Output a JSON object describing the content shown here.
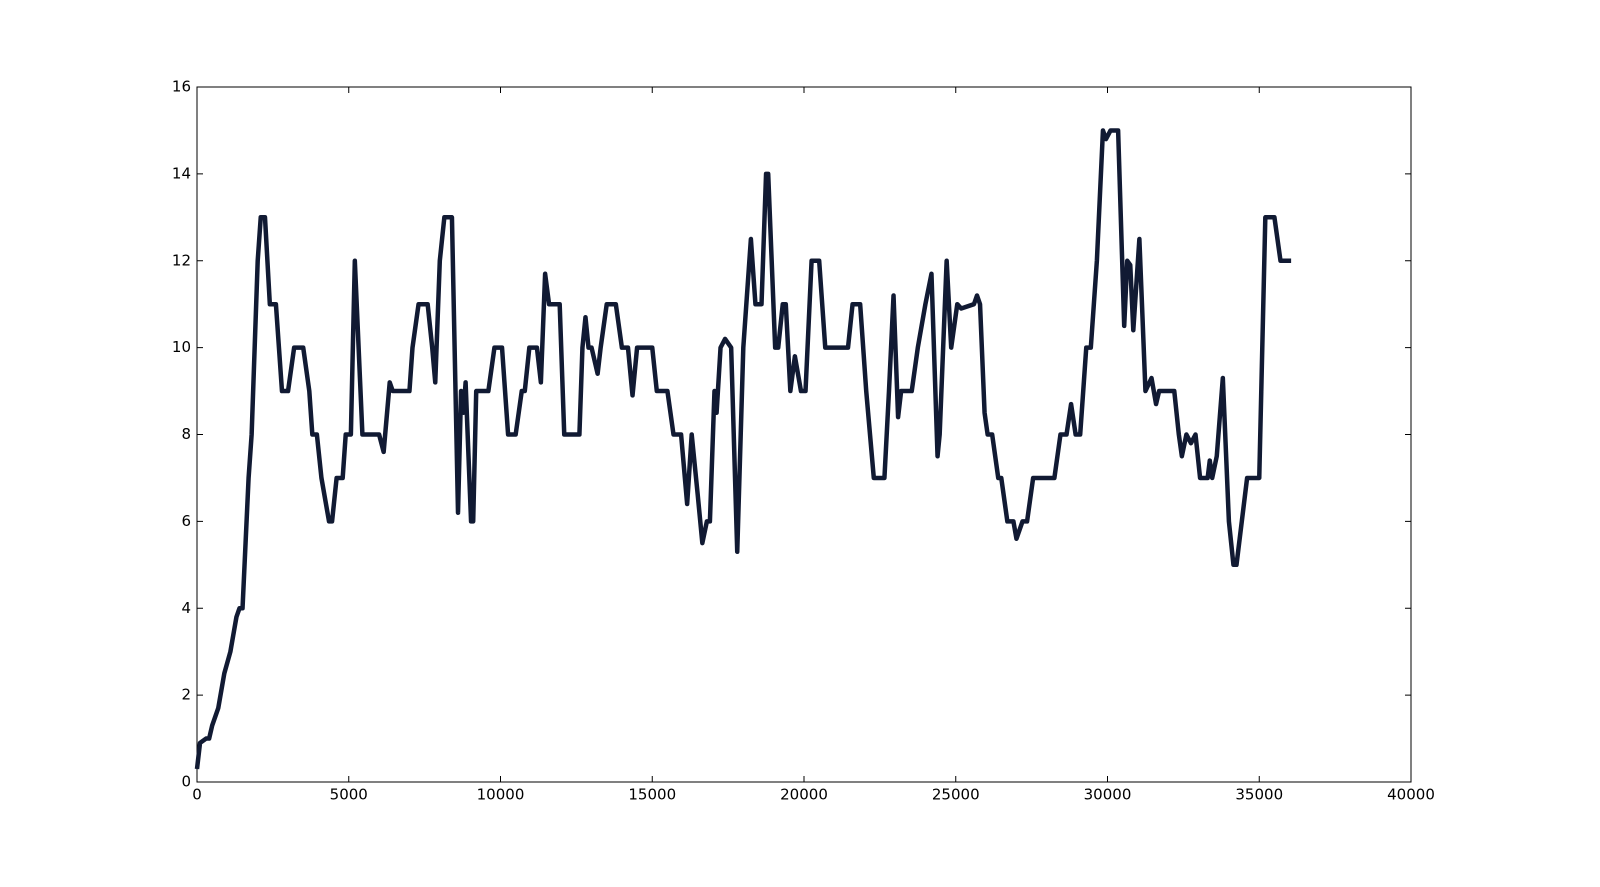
{
  "chart_data": {
    "type": "line",
    "color": "#111a33",
    "xlim": [
      0,
      40000
    ],
    "ylim": [
      0,
      16
    ],
    "xticks": [
      0,
      5000,
      10000,
      15000,
      20000,
      25000,
      30000,
      35000,
      40000
    ],
    "yticks": [
      0,
      2,
      4,
      6,
      8,
      10,
      12,
      14,
      16
    ],
    "x": [
      0,
      100,
      300,
      400,
      500,
      700,
      900,
      1100,
      1300,
      1400,
      1500,
      1600,
      1700,
      1800,
      1900,
      2000,
      2100,
      2240,
      2400,
      2600,
      2700,
      2800,
      3000,
      3200,
      3500,
      3700,
      3800,
      3950,
      4100,
      4350,
      4450,
      4600,
      4800,
      4900,
      5070,
      5200,
      5450,
      6000,
      6150,
      6350,
      6450,
      6550,
      7000,
      7100,
      7300,
      7600,
      7750,
      7850,
      8000,
      8150,
      8400,
      8600,
      8700,
      8780,
      8850,
      9030,
      9100,
      9200,
      9600,
      9800,
      10050,
      10250,
      10500,
      10700,
      10800,
      10950,
      11200,
      11330,
      11470,
      11600,
      11950,
      12100,
      12600,
      12700,
      12800,
      12900,
      13000,
      13200,
      13300,
      13500,
      13800,
      14000,
      14200,
      14350,
      14500,
      15000,
      15150,
      15500,
      15700,
      15950,
      16150,
      16300,
      16500,
      16650,
      16800,
      16900,
      17050,
      17120,
      17250,
      17400,
      17600,
      17800,
      18000,
      18250,
      18400,
      18600,
      18750,
      18820,
      19050,
      19150,
      19300,
      19400,
      19550,
      19700,
      19900,
      20050,
      20250,
      20500,
      20700,
      21450,
      21600,
      21850,
      22050,
      22300,
      22650,
      22800,
      22950,
      23100,
      23200,
      23550,
      23750,
      24000,
      24200,
      24400,
      24470,
      24700,
      24850,
      25050,
      25180,
      25600,
      25700,
      25800,
      25950,
      26050,
      26200,
      26400,
      26500,
      26700,
      26900,
      27000,
      27200,
      27350,
      27550,
      28250,
      28450,
      28650,
      28800,
      28950,
      29100,
      29300,
      29450,
      29650,
      29850,
      29950,
      30100,
      30350,
      30550,
      30650,
      30750,
      30850,
      31050,
      31250,
      31450,
      31600,
      31700,
      32200,
      32350,
      32450,
      32600,
      32750,
      32900,
      33050,
      33300,
      33370,
      33450,
      33600,
      33800,
      34000,
      34150,
      34250,
      34600,
      35000,
      35200,
      35500,
      35700,
      36050
    ],
    "values": [
      0.3,
      0.9,
      1.0,
      1.0,
      1.3,
      1.7,
      2.5,
      3.0,
      3.8,
      4.0,
      4.0,
      5.5,
      7,
      8,
      10,
      12,
      13,
      13,
      11,
      11,
      10,
      9,
      9,
      10,
      10,
      9,
      8,
      8,
      7,
      6,
      6,
      7,
      7,
      8,
      8,
      12,
      8,
      8,
      7.6,
      9.2,
      9,
      9,
      9,
      10,
      11,
      11,
      10,
      9.2,
      12,
      13,
      13,
      6.2,
      9,
      8.5,
      9.2,
      6,
      6,
      9,
      9,
      10,
      10,
      8,
      8,
      9,
      9,
      10,
      10,
      9.2,
      11.7,
      11,
      11,
      8,
      8,
      10,
      10.7,
      10,
      10,
      9.4,
      10,
      11,
      11,
      10,
      10,
      8.9,
      10,
      10,
      9,
      9,
      8,
      8,
      6.4,
      8,
      6.6,
      5.5,
      6,
      6,
      9,
      8.5,
      10,
      10.2,
      10,
      5.3,
      10,
      12.5,
      11,
      11,
      14,
      14,
      10,
      10,
      11,
      11,
      9,
      9.8,
      9,
      9,
      12,
      12,
      10,
      10,
      11,
      11,
      9,
      7,
      7,
      9,
      11.2,
      8.4,
      9,
      9,
      10,
      11,
      11.7,
      7.5,
      8,
      12,
      10,
      11,
      10.9,
      11,
      11.2,
      11,
      8.5,
      8,
      8,
      7,
      7,
      6,
      6,
      5.6,
      6,
      6,
      7,
      7,
      8,
      8,
      8.7,
      8,
      8,
      10,
      10,
      12,
      15,
      14.8,
      15,
      15,
      10.5,
      12,
      11.9,
      10.4,
      12.5,
      9,
      9.3,
      8.7,
      9,
      9,
      8,
      7.5,
      8,
      7.8,
      8,
      7,
      7,
      7.4,
      7,
      7.5,
      9.3,
      6,
      5,
      5,
      7,
      7,
      13,
      13,
      12,
      12
    ]
  }
}
